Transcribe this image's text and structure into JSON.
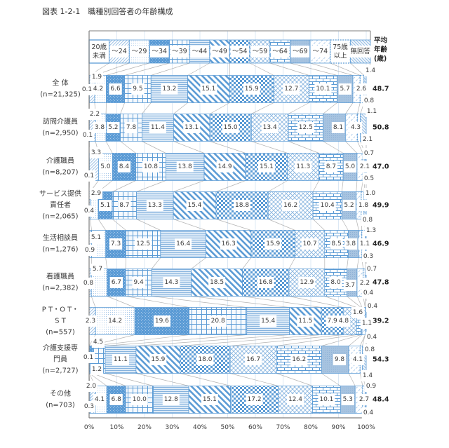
{
  "figure": {
    "title": "図表 1-2-1　職種別回答者の年齢構成"
  },
  "colors": {
    "accent_blue": "#5b9bd5",
    "light_blue": "#9dc3e6",
    "gridline": "#dce8f4",
    "connector": "#b3b3b3",
    "axis": "#7f7f7f"
  },
  "chart_data": {
    "type": "bar",
    "orientation": "horizontal",
    "stacking": "percent",
    "title": "図表 1-2-1　職種別回答者の年齢構成",
    "xlabel": "",
    "ylabel": "",
    "xlim": [
      0,
      100
    ],
    "x_tick_labels": [
      "0%",
      "10%",
      "20%",
      "30%",
      "40%",
      "50%",
      "60%",
      "70%",
      "80%",
      "90%",
      "100%"
    ],
    "grid": true,
    "legend_position": "top",
    "legend_labels": [
      [
        "20歳",
        "未満"
      ],
      [
        "～24"
      ],
      [
        "～29"
      ],
      [
        "～34"
      ],
      [
        "～39"
      ],
      [
        "～44"
      ],
      [
        "～49"
      ],
      [
        "～54"
      ],
      [
        "～59"
      ],
      [
        "～64"
      ],
      [
        "～69"
      ],
      [
        "～74"
      ],
      [
        "75歳",
        "以上"
      ],
      [
        "無回答"
      ]
    ],
    "average_header": [
      "平均",
      "年齢",
      "(歳)"
    ],
    "categories": [
      "全体 (n=21,325)",
      "訪問介護員 (n=2,950)",
      "介護職員 (n=8,207)",
      "サービス提供責任者 (n=2,065)",
      "生活相談員 (n=1,276)",
      "看護職員 (n=2,382)",
      "PT・OT・ST (n=557)",
      "介護支援専門員 (n=2,727)",
      "その他 (n=703)"
    ],
    "category_label_lines": [
      [
        "全 体",
        "(n=21,325)"
      ],
      [
        "訪問介護員",
        "(n=2,950)"
      ],
      [
        "介護職員",
        "(n=8,207)"
      ],
      [
        "サービス提供",
        "責任者",
        "(n=2,065)"
      ],
      [
        "生活相談員",
        "(n=1,276)"
      ],
      [
        "看護職員",
        "(n=2,382)"
      ],
      [
        "P T・O T・",
        "S T",
        "(n=557)"
      ],
      [
        "介護支援専",
        "門員",
        "(n=2,727)"
      ],
      [
        "その他",
        "(n=703)"
      ]
    ],
    "series": [
      {
        "name": "20歳未満",
        "fill_pattern": "white-outline",
        "values": [
          0.1,
          0.1,
          0.1,
          null,
          null,
          null,
          null,
          null,
          0.3
        ]
      },
      {
        "name": "～24",
        "fill_pattern": "fine-diagonal-up",
        "values": [
          1.9,
          2.2,
          3.3,
          0.4,
          0.9,
          0.8,
          2.3,
          null,
          2.0
        ]
      },
      {
        "name": "～29",
        "fill_pattern": "fine-dots",
        "values": [
          4.2,
          3.8,
          5.0,
          2.9,
          5.1,
          5.7,
          14.2,
          0.1,
          4.1
        ]
      },
      {
        "name": "～34",
        "fill_pattern": "solid-blue-dotted",
        "values": [
          6.6,
          5.2,
          8.4,
          5.1,
          7.3,
          6.7,
          19.6,
          1.2,
          6.8
        ]
      },
      {
        "name": "～39",
        "fill_pattern": "large-grid",
        "values": [
          9.5,
          7.8,
          10.8,
          8.7,
          12.5,
          9.4,
          20.8,
          4.5,
          10.0
        ]
      },
      {
        "name": "～44",
        "fill_pattern": "horizontal-stripes",
        "values": [
          13.2,
          11.4,
          13.8,
          13.3,
          16.4,
          14.3,
          15.4,
          11.1,
          12.8
        ]
      },
      {
        "name": "～49",
        "fill_pattern": "wide-diagonal-down",
        "values": [
          15.1,
          13.1,
          14.9,
          15.4,
          16.3,
          18.5,
          11.5,
          15.9,
          15.1
        ]
      },
      {
        "name": "～54",
        "fill_pattern": "checkerboard",
        "values": [
          15.9,
          15.0,
          15.1,
          18.8,
          15.9,
          16.8,
          7.9,
          18.0,
          17.2
        ]
      },
      {
        "name": "～59",
        "fill_pattern": "diagonal-crosshatch",
        "values": [
          12.7,
          13.4,
          11.3,
          16.2,
          10.7,
          12.9,
          4.8,
          16.7,
          12.4
        ]
      },
      {
        "name": "～64",
        "fill_pattern": "brick",
        "values": [
          10.1,
          12.5,
          8.7,
          10.4,
          8.5,
          8.0,
          1.6,
          16.2,
          10.1
        ]
      },
      {
        "name": "～69",
        "fill_pattern": "solid-gray-blue",
        "values": [
          5.7,
          8.1,
          5.0,
          5.2,
          3.8,
          3.7,
          0.4,
          9.8,
          5.3
        ]
      },
      {
        "name": "～74",
        "fill_pattern": "dashed-diagonal-up",
        "values": [
          2.6,
          4.3,
          2.1,
          1.8,
          1.1,
          2.2,
          1.1,
          4.1,
          2.7
        ]
      },
      {
        "name": "75歳以上",
        "fill_pattern": "white-dashed-outline",
        "values": [
          1.4,
          1.1,
          0.7,
          1.0,
          1.3,
          0.7,
          null,
          0.8,
          0.9
        ]
      },
      {
        "name": "無回答",
        "fill_pattern": "fine-diagonal-down",
        "values": [
          0.8,
          2.1,
          0.5,
          0.8,
          0.3,
          0.4,
          0.4,
          1.4,
          0.4
        ]
      }
    ],
    "average_age": [
      48.7,
      50.8,
      47.0,
      49.9,
      46.9,
      47.8,
      39.2,
      54.3,
      48.4
    ]
  }
}
